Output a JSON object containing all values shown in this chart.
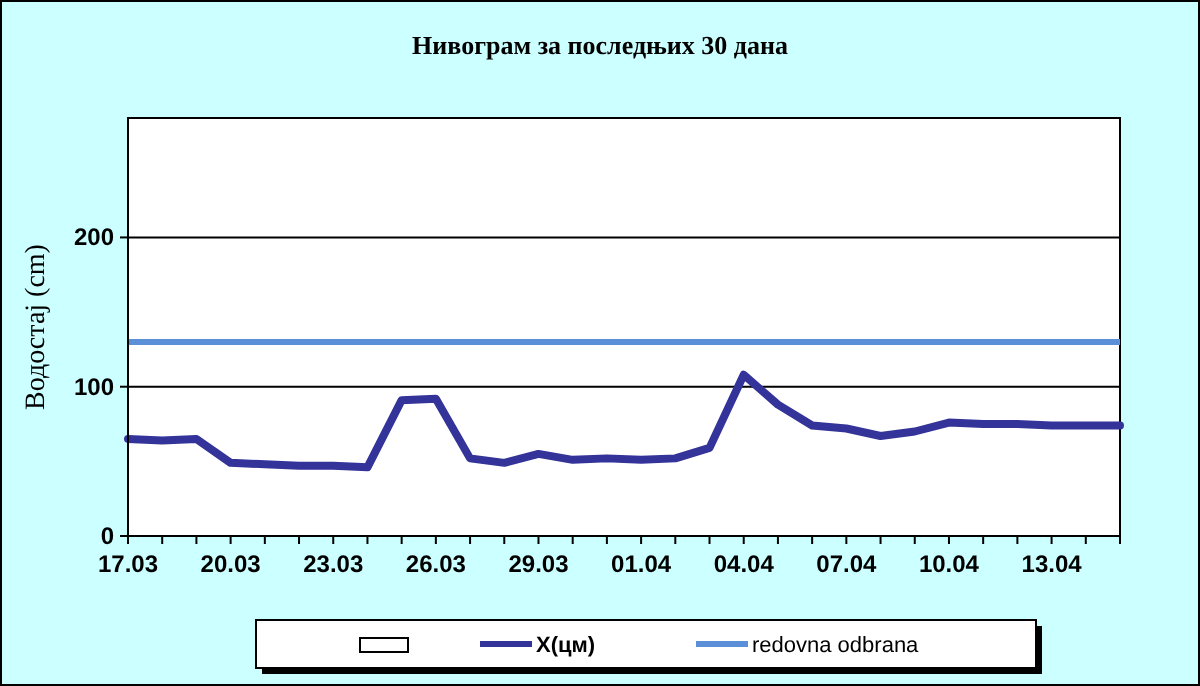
{
  "chart_data": {
    "type": "line",
    "title": "Нивограм за последњих 30 дана",
    "ylabel": "Водостај (cm)",
    "categories": [
      "17.03",
      null,
      null,
      "20.03",
      null,
      null,
      "23.03",
      null,
      null,
      "26.03",
      null,
      null,
      "29.03",
      null,
      null,
      "01.04",
      null,
      null,
      "04.04",
      null,
      null,
      "07.04",
      null,
      null,
      "10.04",
      null,
      null,
      "13.04",
      null,
      null
    ],
    "series": [
      {
        "name": "X(цм)",
        "color": "#333399",
        "values": [
          65,
          64,
          65,
          49,
          48,
          47,
          47,
          46,
          91,
          92,
          52,
          49,
          55,
          51,
          52,
          51,
          52,
          59,
          108,
          88,
          74,
          72,
          67,
          70,
          76,
          75,
          75,
          74,
          74,
          74
        ]
      }
    ],
    "ref_lines": [
      {
        "axis": "y",
        "value": 130,
        "label": "redovna odbrana",
        "color": "#5b8fd8"
      }
    ],
    "ylim": [
      0,
      280
    ],
    "yticks": [
      0,
      100,
      200
    ],
    "grid": "y",
    "legend": "bottom",
    "marker": "none",
    "line_style": "solid"
  }
}
